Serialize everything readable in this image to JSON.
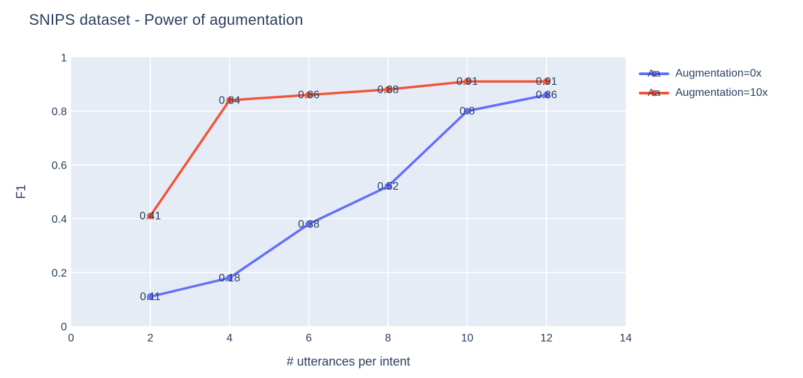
{
  "title": "SNIPS dataset - Power of agumentation",
  "colors": {
    "font": "#2a3f5f",
    "plot_bg": "#e5ecf6",
    "grid": "#ffffff",
    "series_0": "#636efa",
    "series_1": "#ef553b",
    "page_bg": "#ffffff"
  },
  "legend": {
    "marker_text": "Aa",
    "position": "top-right"
  },
  "chart_data": {
    "type": "line",
    "title": "SNIPS dataset - Power of agumentation",
    "xlabel": "# utterances per intent",
    "ylabel": "F1",
    "x": [
      2,
      4,
      6,
      8,
      10,
      12
    ],
    "series": [
      {
        "name": "Augmentation=0x",
        "color": "#636efa",
        "values": [
          0.11,
          0.18,
          0.38,
          0.52,
          0.8,
          0.86
        ],
        "point_labels": [
          "0.11",
          "0.18",
          "0.38",
          "0.52",
          "0.8",
          "0.86"
        ]
      },
      {
        "name": "Augmentation=10x",
        "color": "#ef553b",
        "values": [
          0.41,
          0.84,
          0.86,
          0.88,
          0.91,
          0.91
        ],
        "point_labels": [
          "0.41",
          "0.84",
          "0.86",
          "0.88",
          "0.91",
          "0.91"
        ]
      }
    ],
    "xticks": [
      0,
      2,
      4,
      6,
      8,
      10,
      12,
      14
    ],
    "yticks": [
      0,
      0.2,
      0.4,
      0.6,
      0.8,
      1
    ],
    "xlim": [
      0,
      14
    ],
    "ylim": [
      0,
      1
    ],
    "grid": true,
    "legend_entries": [
      "Augmentation=0x",
      "Augmentation=10x"
    ]
  }
}
